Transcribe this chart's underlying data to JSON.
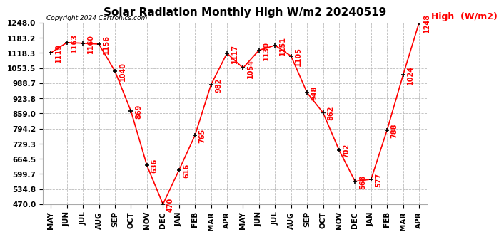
{
  "title": "Solar Radiation Monthly High W/m2 20240519",
  "copyright": "Copyright 2024 Cartronics.com",
  "legend_label": "High  (W/m2)",
  "months": [
    "MAY",
    "JUN",
    "JUL",
    "AUG",
    "SEP",
    "OCT",
    "NOV",
    "DEC",
    "JAN",
    "FEB",
    "MAR",
    "APR",
    "MAY",
    "JUN",
    "JUL",
    "AUG",
    "SEP",
    "OCT",
    "NOV",
    "DEC",
    "JAN",
    "FEB",
    "MAR",
    "APR"
  ],
  "values": [
    1119,
    1163,
    1160,
    1156,
    1040,
    869,
    636,
    470,
    616,
    765,
    982,
    1117,
    1054,
    1130,
    1151,
    1105,
    948,
    862,
    702,
    568,
    577,
    788,
    1024,
    1248
  ],
  "line_color": "red",
  "marker_color": "black",
  "grid_color": "#bbbbbb",
  "bg_color": "#ffffff",
  "ylim": [
    470.0,
    1248.0
  ],
  "yticks": [
    470.0,
    534.8,
    599.7,
    664.5,
    729.3,
    794.2,
    859.0,
    923.8,
    988.7,
    1053.5,
    1118.3,
    1183.2,
    1248.0
  ],
  "title_fontsize": 11,
  "label_fontsize": 7,
  "tick_fontsize": 7.5,
  "legend_fontsize": 9
}
